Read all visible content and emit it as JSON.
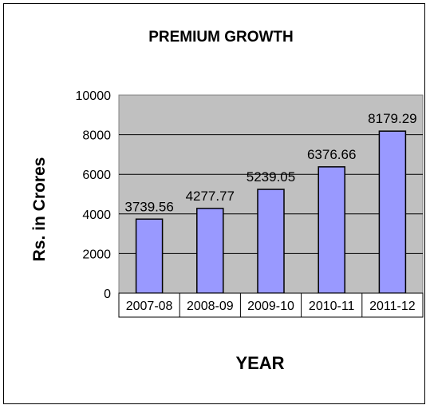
{
  "chart_data": {
    "type": "bar",
    "title": "PREMIUM GROWTH",
    "xlabel": "YEAR",
    "ylabel": "Rs. in Crores",
    "categories": [
      "2007-08",
      "2008-09",
      "2009-10",
      "2010-11",
      "2011-12"
    ],
    "values": [
      3739.56,
      4277.77,
      5239.05,
      6376.66,
      8179.29
    ],
    "value_labels": [
      "3739.56",
      "4277.77",
      "5239.05",
      "6376.66",
      "8179.29"
    ],
    "ylim": [
      0,
      10000
    ],
    "yticks": [
      0,
      2000,
      4000,
      6000,
      8000,
      10000
    ],
    "ytick_labels": [
      "0",
      "2000",
      "4000",
      "6000",
      "8000",
      "10000"
    ],
    "grid": true,
    "legend": "none",
    "colors": {
      "plot_bg": "#c0c0c0",
      "bar_fill": "#9999ff",
      "bar_stroke": "#000000",
      "gridline": "#000000"
    }
  }
}
